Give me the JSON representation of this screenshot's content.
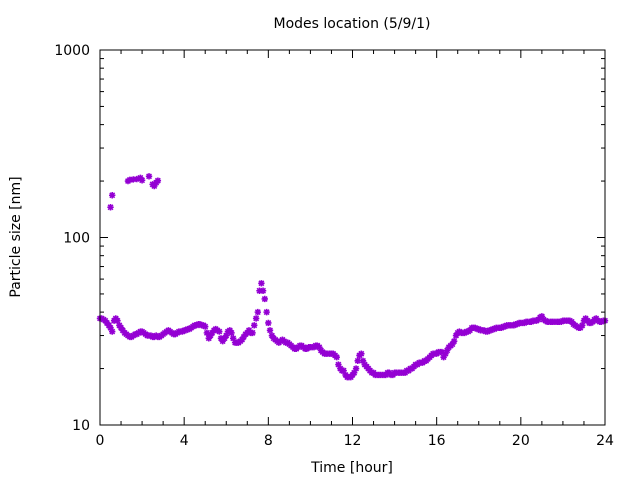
{
  "chart_data": {
    "type": "scatter",
    "title": "Modes location (5/9/1)",
    "xlabel": "Time [hour]",
    "ylabel": "Particle size [nm]",
    "xlim": [
      0,
      24
    ],
    "ylim": [
      10,
      1000
    ],
    "yscale": "log",
    "x_ticks": [
      0,
      4,
      8,
      12,
      16,
      20,
      24
    ],
    "y_ticks": [
      10,
      100,
      1000
    ],
    "x_tick_labels": [
      "0",
      "4",
      "8",
      "12",
      "16",
      "20",
      "24"
    ],
    "y_tick_labels": [
      "10",
      "100",
      "1000"
    ],
    "marker": "star",
    "color": "#9400d3",
    "grid": false,
    "series": [
      {
        "points": [
          [
            0.0,
            37
          ],
          [
            0.08,
            37
          ],
          [
            0.17,
            36.5
          ],
          [
            0.25,
            36
          ],
          [
            0.33,
            35
          ],
          [
            0.42,
            34
          ],
          [
            0.5,
            33
          ],
          [
            0.58,
            31.5
          ],
          [
            0.67,
            36
          ],
          [
            0.75,
            37
          ],
          [
            0.83,
            36
          ],
          [
            0.92,
            34
          ],
          [
            1.0,
            33
          ],
          [
            1.08,
            32
          ],
          [
            1.17,
            31
          ],
          [
            1.25,
            30.5
          ],
          [
            1.33,
            30
          ],
          [
            1.42,
            29.5
          ],
          [
            1.5,
            29.5
          ],
          [
            1.58,
            30
          ],
          [
            1.67,
            30.5
          ],
          [
            1.75,
            30.5
          ],
          [
            1.83,
            31
          ],
          [
            1.92,
            31.5
          ],
          [
            2.0,
            31.5
          ],
          [
            2.08,
            31
          ],
          [
            2.17,
            30.5
          ],
          [
            2.25,
            30
          ],
          [
            2.33,
            30
          ],
          [
            2.42,
            30
          ],
          [
            2.5,
            29.5
          ],
          [
            2.58,
            29.5
          ],
          [
            2.67,
            30
          ],
          [
            2.75,
            29.5
          ],
          [
            2.83,
            29.5
          ],
          [
            2.92,
            30
          ],
          [
            3.0,
            30.5
          ],
          [
            3.08,
            31
          ],
          [
            3.17,
            31.5
          ],
          [
            3.25,
            32
          ],
          [
            3.33,
            31.5
          ],
          [
            3.42,
            31
          ],
          [
            3.5,
            30.5
          ],
          [
            3.58,
            30.5
          ],
          [
            3.67,
            31
          ],
          [
            3.75,
            31.5
          ],
          [
            3.83,
            31.5
          ],
          [
            3.92,
            31.5
          ],
          [
            4.0,
            32
          ],
          [
            4.08,
            32
          ],
          [
            4.17,
            32.5
          ],
          [
            4.25,
            32.5
          ],
          [
            4.33,
            33
          ],
          [
            4.42,
            33.5
          ],
          [
            4.5,
            34
          ],
          [
            4.58,
            34
          ],
          [
            4.67,
            34.5
          ],
          [
            4.75,
            34.5
          ],
          [
            4.83,
            34
          ],
          [
            4.92,
            34
          ],
          [
            5.0,
            33.5
          ],
          [
            5.08,
            31
          ],
          [
            5.17,
            29
          ],
          [
            5.25,
            30
          ],
          [
            5.33,
            31
          ],
          [
            5.42,
            32
          ],
          [
            5.5,
            32.5
          ],
          [
            5.58,
            32
          ],
          [
            5.67,
            31.5
          ],
          [
            5.75,
            29
          ],
          [
            5.83,
            28
          ],
          [
            5.92,
            29
          ],
          [
            6.0,
            30
          ],
          [
            6.08,
            31.5
          ],
          [
            6.17,
            32
          ],
          [
            6.25,
            31
          ],
          [
            6.33,
            29
          ],
          [
            6.42,
            27.5
          ],
          [
            6.5,
            27.5
          ],
          [
            6.58,
            27.5
          ],
          [
            6.67,
            28
          ],
          [
            6.75,
            28.5
          ],
          [
            6.83,
            29.5
          ],
          [
            6.92,
            30.5
          ],
          [
            7.0,
            31
          ],
          [
            7.08,
            32
          ],
          [
            7.17,
            31
          ],
          [
            7.25,
            31
          ],
          [
            7.33,
            34
          ],
          [
            7.42,
            37
          ],
          [
            7.5,
            40
          ],
          [
            7.58,
            52
          ],
          [
            7.67,
            57
          ],
          [
            7.75,
            52
          ],
          [
            7.83,
            47
          ],
          [
            7.92,
            40
          ],
          [
            8.0,
            35
          ],
          [
            8.08,
            32
          ],
          [
            8.17,
            30
          ],
          [
            8.25,
            29
          ],
          [
            8.33,
            28.5
          ],
          [
            8.42,
            28
          ],
          [
            8.5,
            27.5
          ],
          [
            8.58,
            28
          ],
          [
            8.67,
            28.5
          ],
          [
            8.75,
            28
          ],
          [
            8.83,
            27.5
          ],
          [
            8.92,
            27.5
          ],
          [
            9.0,
            27
          ],
          [
            9.08,
            26.5
          ],
          [
            9.17,
            26
          ],
          [
            9.25,
            25.5
          ],
          [
            9.33,
            25.5
          ],
          [
            9.42,
            26
          ],
          [
            9.5,
            26.5
          ],
          [
            9.58,
            26.5
          ],
          [
            9.67,
            26
          ],
          [
            9.75,
            25.5
          ],
          [
            9.83,
            25.5
          ],
          [
            9.92,
            26
          ],
          [
            10.0,
            26
          ],
          [
            10.08,
            26
          ],
          [
            10.17,
            26
          ],
          [
            10.25,
            26.5
          ],
          [
            10.33,
            26.5
          ],
          [
            10.42,
            26
          ],
          [
            10.5,
            25
          ],
          [
            10.58,
            24.5
          ],
          [
            10.67,
            24
          ],
          [
            10.75,
            24
          ],
          [
            10.83,
            24
          ],
          [
            10.92,
            24
          ],
          [
            11.0,
            24
          ],
          [
            11.08,
            24
          ],
          [
            11.17,
            23.5
          ],
          [
            11.25,
            23
          ],
          [
            11.33,
            21
          ],
          [
            11.42,
            20
          ],
          [
            11.5,
            19.5
          ],
          [
            11.58,
            19.5
          ],
          [
            11.67,
            18.5
          ],
          [
            11.75,
            18
          ],
          [
            11.83,
            18
          ],
          [
            11.92,
            18
          ],
          [
            12.0,
            18.5
          ],
          [
            12.08,
            19
          ],
          [
            12.17,
            20
          ],
          [
            12.25,
            22
          ],
          [
            12.33,
            23.5
          ],
          [
            12.42,
            24
          ],
          [
            12.5,
            22
          ],
          [
            12.58,
            21
          ],
          [
            12.67,
            20.5
          ],
          [
            12.75,
            20
          ],
          [
            12.83,
            19.5
          ],
          [
            12.92,
            19
          ],
          [
            13.0,
            19
          ],
          [
            13.08,
            18.5
          ],
          [
            13.17,
            18.5
          ],
          [
            13.25,
            18.5
          ],
          [
            13.33,
            18.5
          ],
          [
            13.42,
            18.5
          ],
          [
            13.5,
            18.5
          ],
          [
            13.58,
            18.5
          ],
          [
            13.67,
            19
          ],
          [
            13.75,
            19
          ],
          [
            13.83,
            18.5
          ],
          [
            13.92,
            18.5
          ],
          [
            14.0,
            19
          ],
          [
            14.08,
            19
          ],
          [
            14.17,
            19
          ],
          [
            14.25,
            19
          ],
          [
            14.33,
            19
          ],
          [
            14.42,
            19
          ],
          [
            14.5,
            19
          ],
          [
            14.58,
            19.5
          ],
          [
            14.67,
            19.5
          ],
          [
            14.75,
            20
          ],
          [
            14.83,
            20
          ],
          [
            14.92,
            20.5
          ],
          [
            15.0,
            21
          ],
          [
            15.08,
            21
          ],
          [
            15.17,
            21.5
          ],
          [
            15.25,
            21.5
          ],
          [
            15.33,
            21.5
          ],
          [
            15.42,
            22
          ],
          [
            15.5,
            22
          ],
          [
            15.58,
            22.5
          ],
          [
            15.67,
            23
          ],
          [
            15.75,
            23.5
          ],
          [
            15.83,
            24
          ],
          [
            15.92,
            24
          ],
          [
            16.0,
            24
          ],
          [
            16.08,
            24.5
          ],
          [
            16.17,
            24.5
          ],
          [
            16.25,
            24.5
          ],
          [
            16.33,
            23
          ],
          [
            16.42,
            24
          ],
          [
            16.5,
            25
          ],
          [
            16.58,
            26
          ],
          [
            16.67,
            26.5
          ],
          [
            16.75,
            27
          ],
          [
            16.83,
            28
          ],
          [
            16.92,
            30
          ],
          [
            17.0,
            31
          ],
          [
            17.08,
            31.5
          ],
          [
            17.17,
            31
          ],
          [
            17.25,
            31
          ],
          [
            17.33,
            31
          ],
          [
            17.42,
            31.5
          ],
          [
            17.5,
            31.5
          ],
          [
            17.58,
            32
          ],
          [
            17.67,
            33
          ],
          [
            17.75,
            33
          ],
          [
            17.83,
            33
          ],
          [
            17.92,
            32.5
          ],
          [
            18.0,
            32.5
          ],
          [
            18.08,
            32
          ],
          [
            18.17,
            32
          ],
          [
            18.25,
            32
          ],
          [
            18.33,
            31.5
          ],
          [
            18.42,
            31.5
          ],
          [
            18.5,
            32
          ],
          [
            18.58,
            32
          ],
          [
            18.67,
            32.5
          ],
          [
            18.75,
            32.5
          ],
          [
            18.83,
            33
          ],
          [
            18.92,
            33
          ],
          [
            19.0,
            33
          ],
          [
            19.08,
            33
          ],
          [
            19.17,
            33.5
          ],
          [
            19.25,
            33.5
          ],
          [
            19.33,
            34
          ],
          [
            19.42,
            34
          ],
          [
            19.5,
            34
          ],
          [
            19.58,
            34
          ],
          [
            19.67,
            34
          ],
          [
            19.75,
            34.5
          ],
          [
            19.83,
            34.5
          ],
          [
            19.92,
            35
          ],
          [
            20.0,
            35
          ],
          [
            20.08,
            35
          ],
          [
            20.17,
            35
          ],
          [
            20.25,
            35.5
          ],
          [
            20.33,
            35.5
          ],
          [
            20.42,
            35.5
          ],
          [
            20.5,
            35.5
          ],
          [
            20.58,
            36
          ],
          [
            20.67,
            36
          ],
          [
            20.75,
            36
          ],
          [
            20.83,
            36.5
          ],
          [
            20.92,
            37.5
          ],
          [
            21.0,
            38
          ],
          [
            21.08,
            36.5
          ],
          [
            21.17,
            36
          ],
          [
            21.25,
            35.5
          ],
          [
            21.33,
            35.5
          ],
          [
            21.42,
            35.5
          ],
          [
            21.5,
            35.5
          ],
          [
            21.58,
            35.5
          ],
          [
            21.67,
            35.5
          ],
          [
            21.75,
            35.5
          ],
          [
            21.83,
            35.5
          ],
          [
            21.92,
            35.5
          ],
          [
            22.0,
            36
          ],
          [
            22.08,
            36
          ],
          [
            22.17,
            36
          ],
          [
            22.25,
            36
          ],
          [
            22.33,
            36
          ],
          [
            22.42,
            35.5
          ],
          [
            22.5,
            34.5
          ],
          [
            22.58,
            34
          ],
          [
            22.67,
            33.5
          ],
          [
            22.75,
            33
          ],
          [
            22.83,
            33
          ],
          [
            22.92,
            34
          ],
          [
            23.0,
            36
          ],
          [
            23.08,
            37
          ],
          [
            23.17,
            36
          ],
          [
            23.25,
            35
          ],
          [
            23.33,
            35
          ],
          [
            23.42,
            35.5
          ],
          [
            23.5,
            36.5
          ],
          [
            23.58,
            37
          ],
          [
            23.67,
            36
          ],
          [
            23.75,
            35.5
          ],
          [
            23.83,
            35.5
          ],
          [
            23.92,
            36
          ],
          [
            24.0,
            36
          ],
          [
            0.5,
            145
          ],
          [
            0.58,
            168
          ],
          [
            1.33,
            200
          ],
          [
            1.42,
            203
          ],
          [
            1.58,
            204
          ],
          [
            1.75,
            205
          ],
          [
            1.92,
            208
          ],
          [
            2.0,
            202
          ],
          [
            2.33,
            212
          ],
          [
            2.5,
            192
          ],
          [
            2.58,
            188
          ],
          [
            2.67,
            196
          ],
          [
            2.75,
            201
          ]
        ]
      }
    ]
  }
}
